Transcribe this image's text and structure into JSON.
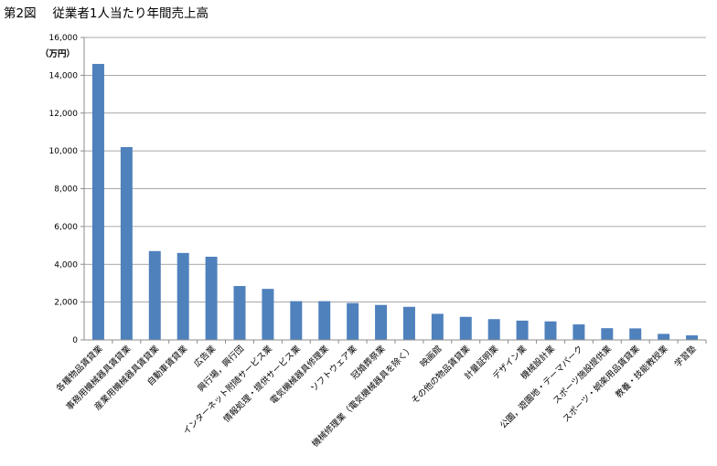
{
  "figure_title": "第2図　 従業者1人当たり年間売上高",
  "chart_data": {
    "type": "bar",
    "title": "",
    "unit_label": "（万円）",
    "xlabel": "",
    "ylabel": "",
    "ylim": [
      0,
      16000
    ],
    "yticks": [
      0,
      2000,
      4000,
      6000,
      8000,
      10000,
      12000,
      14000,
      16000
    ],
    "ytick_labels": [
      "0",
      "2,000",
      "4,000",
      "6,000",
      "8,000",
      "10,000",
      "12,000",
      "14,000",
      "16,000"
    ],
    "grid": true,
    "legend": "none",
    "bar_color": "#4F81BD",
    "categories": [
      "各種物品賃貸業",
      "事務用機械器具賃貸業",
      "産業用機械器具賃貸業",
      "自動車賃貸業",
      "広告業",
      "興行場，興行団",
      "インターネット附随サービス業",
      "情報処理・提供サービス業",
      "電気機械器具修理業",
      "ソフトウェア業",
      "冠婚葬祭業",
      "機械修理業（電気機械器具を除く）",
      "映画館",
      "その他の物品賃貸業",
      "計量証明業",
      "デザイン業",
      "機械設計業",
      "公園，遊園地・テーマパーク",
      "スポーツ施設提供業",
      "スポーツ・娯楽用品賃貸業",
      "教養・技能教授業",
      "学習塾"
    ],
    "values": [
      14600,
      10200,
      4700,
      4600,
      4400,
      2850,
      2700,
      2050,
      2050,
      1950,
      1850,
      1750,
      1380,
      1220,
      1100,
      1020,
      980,
      820,
      620,
      610,
      320,
      240
    ]
  }
}
